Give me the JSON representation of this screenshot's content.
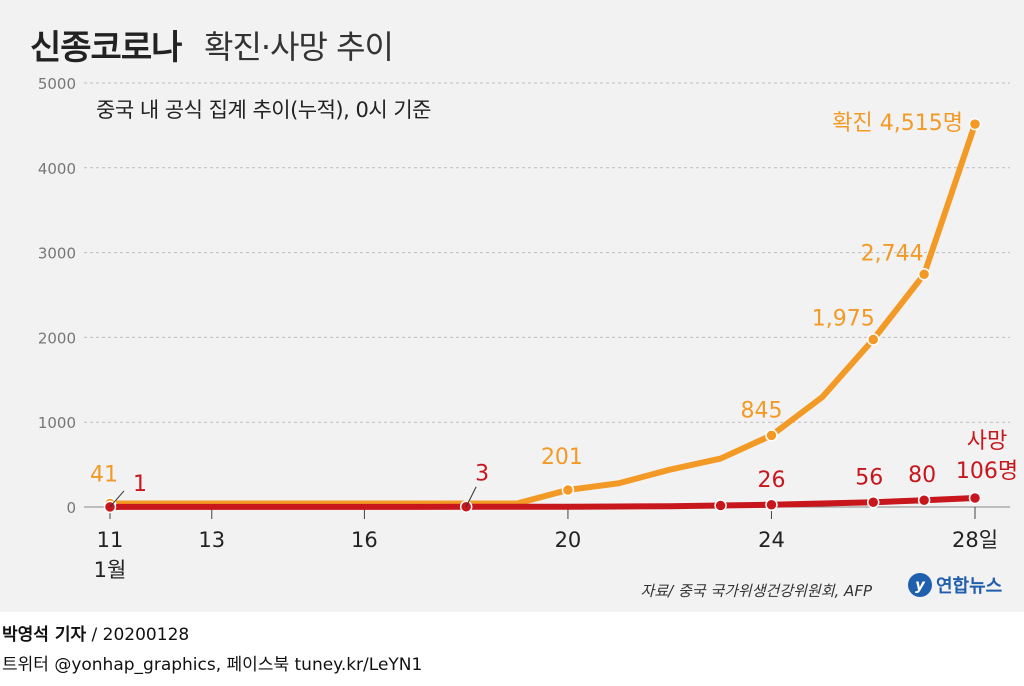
{
  "header": {
    "title_main": "신종코로나",
    "title_sub": "확진·사망 추이",
    "subtitle": "중국 내 공식 집계 추이(누적), 0시 기준"
  },
  "source": "자료/ 중국 국가위생건강위원회, AFP",
  "logo": {
    "mark": "y",
    "text": "연합뉴스"
  },
  "footer": {
    "reporter": "박영석 기자",
    "separator": " / ",
    "date": "20200128",
    "social": "트위터 @yonhap_graphics, 페이스북 tuney.kr/LeYN1"
  },
  "colors": {
    "confirmed": "#f39a26",
    "deaths": "#c8161d",
    "grid": "#bdbdbd",
    "axis_text": "#777777",
    "text": "#222222"
  },
  "chart_data": {
    "type": "line",
    "title": "신종코로나 확진·사망 추이",
    "subtitle": "중국 내 공식 집계 추이(누적), 0시 기준",
    "xlabel": "",
    "ylabel": "",
    "xlim": [
      11,
      28
    ],
    "ylim": [
      0,
      5000
    ],
    "yticks": [
      0,
      1000,
      2000,
      3000,
      4000,
      5000
    ],
    "ytick_labels": [
      "0",
      "1000",
      "2000",
      "3000",
      "4000",
      "5000"
    ],
    "xticks": [
      11,
      13,
      16,
      20,
      24,
      28
    ],
    "xtick_labels": [
      "11",
      "13",
      "16",
      "20",
      "24",
      "28일"
    ],
    "xtick_sublabel": "1월",
    "grid": true,
    "series": [
      {
        "name": "확진",
        "label_prefix": "확진",
        "label_final": "확진 4,515명",
        "color": "#f39a26",
        "points": [
          {
            "x": 11,
            "y": 41,
            "marker": true,
            "label": "41"
          },
          {
            "x": 12,
            "y": 41,
            "marker": false
          },
          {
            "x": 13,
            "y": 41,
            "marker": false
          },
          {
            "x": 14,
            "y": 41,
            "marker": false
          },
          {
            "x": 15,
            "y": 41,
            "marker": false
          },
          {
            "x": 16,
            "y": 41,
            "marker": false
          },
          {
            "x": 17,
            "y": 41,
            "marker": false
          },
          {
            "x": 18,
            "y": 41,
            "marker": false
          },
          {
            "x": 19,
            "y": 41,
            "marker": false
          },
          {
            "x": 20,
            "y": 201,
            "marker": true,
            "label": "201"
          },
          {
            "x": 21,
            "y": 280,
            "marker": false
          },
          {
            "x": 22,
            "y": 440,
            "marker": false
          },
          {
            "x": 23,
            "y": 571,
            "marker": false
          },
          {
            "x": 24,
            "y": 845,
            "marker": true,
            "label": "845"
          },
          {
            "x": 25,
            "y": 1297,
            "marker": false
          },
          {
            "x": 26,
            "y": 1975,
            "marker": true,
            "label": "1,975"
          },
          {
            "x": 27,
            "y": 2744,
            "marker": true,
            "label": "2,744"
          },
          {
            "x": 28,
            "y": 4515,
            "marker": true,
            "label": "확진 4,515명"
          }
        ]
      },
      {
        "name": "사망",
        "label_final_top": "사망",
        "label_final": "106명",
        "color": "#c8161d",
        "points": [
          {
            "x": 11,
            "y": 1,
            "marker": true,
            "label": "1"
          },
          {
            "x": 12,
            "y": 1,
            "marker": false
          },
          {
            "x": 13,
            "y": 1,
            "marker": false
          },
          {
            "x": 14,
            "y": 1,
            "marker": false
          },
          {
            "x": 15,
            "y": 1,
            "marker": false
          },
          {
            "x": 16,
            "y": 1,
            "marker": false
          },
          {
            "x": 17,
            "y": 2,
            "marker": false
          },
          {
            "x": 18,
            "y": 3,
            "marker": true,
            "label": "3"
          },
          {
            "x": 19,
            "y": 3,
            "marker": false
          },
          {
            "x": 20,
            "y": 3,
            "marker": false
          },
          {
            "x": 21,
            "y": 6,
            "marker": false
          },
          {
            "x": 22,
            "y": 9,
            "marker": false
          },
          {
            "x": 23,
            "y": 17,
            "marker": true
          },
          {
            "x": 24,
            "y": 26,
            "marker": true,
            "label": "26"
          },
          {
            "x": 25,
            "y": 41,
            "marker": false
          },
          {
            "x": 26,
            "y": 56,
            "marker": true,
            "label": "56"
          },
          {
            "x": 27,
            "y": 80,
            "marker": true,
            "label": "80"
          },
          {
            "x": 28,
            "y": 106,
            "marker": true,
            "label": "106명"
          }
        ]
      }
    ]
  }
}
